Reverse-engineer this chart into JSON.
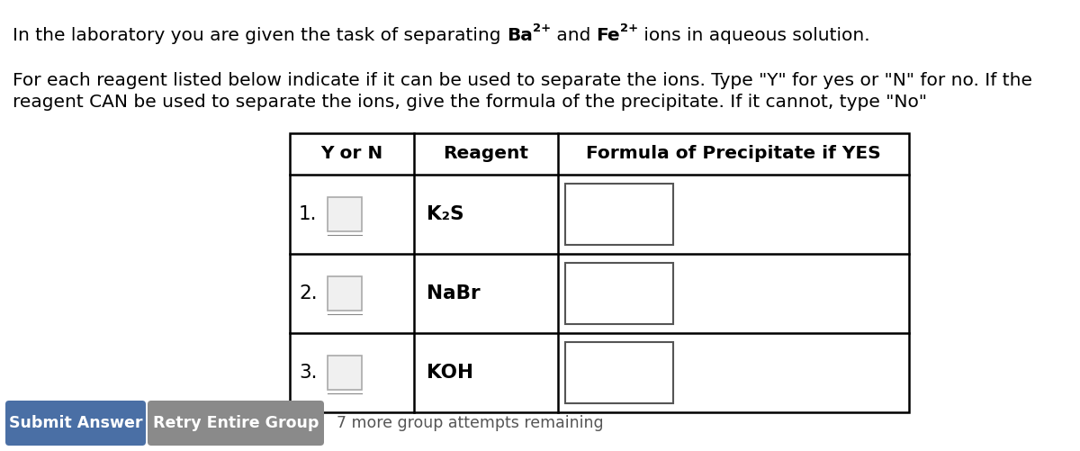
{
  "background_color": "#ffffff",
  "para_line1": "For each reagent listed below indicate if it can be used to separate the ions. Type \"Y\" for yes or \"N\" for no. If the",
  "para_line2": "reagent CAN be used to separate the ions, give the formula of the precipitate. If it cannot, type \"No\"",
  "reagents": [
    "K₂S",
    "NaBr",
    "KOH"
  ],
  "row_nums": [
    "1.",
    "2.",
    "3."
  ],
  "btn1_text": "Submit Answer",
  "btn1_color": "#4a6fa5",
  "btn2_text": "Retry Entire Group",
  "btn2_color": "#8a8a8a",
  "footer_text": "7 more group attempts remaining",
  "title_normal_pre": "In the laboratory you are given the task of separating ",
  "title_normal_post": " ions in aqueous solution.",
  "title_mid": " and ",
  "fs_main": 14.5,
  "fs_table_header": 14.5,
  "fs_row": 15.5
}
